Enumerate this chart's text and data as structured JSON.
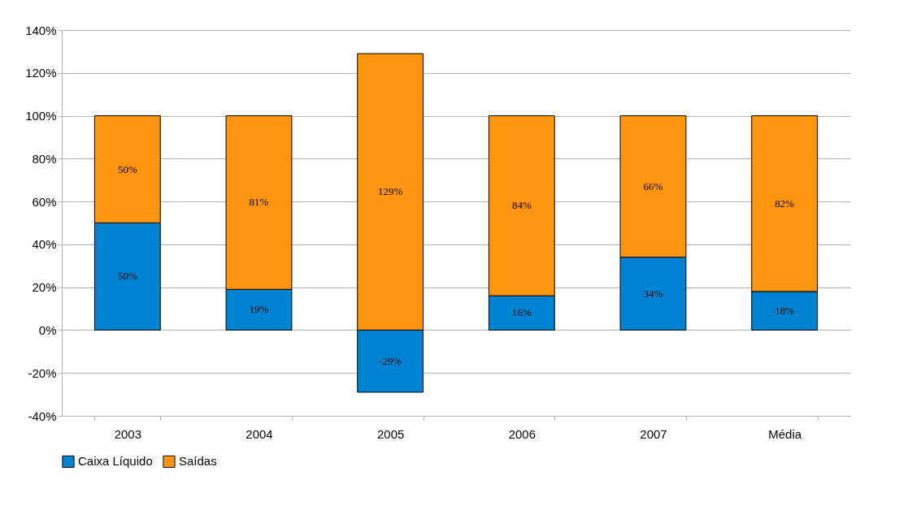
{
  "chart_data": {
    "type": "bar",
    "stacked": true,
    "categories": [
      "2003",
      "2004",
      "2005",
      "2006",
      "2007",
      "Média"
    ],
    "series": [
      {
        "name": "Caixa Líquido",
        "color": "#0084d1",
        "values": [
          50,
          19,
          -29,
          16,
          34,
          18
        ],
        "value_labels": [
          "50%",
          "19%",
          "-29%",
          "16%",
          "34%",
          "18%"
        ]
      },
      {
        "name": "Saídas",
        "color": "#ff950e",
        "values": [
          50,
          81,
          129,
          84,
          66,
          82
        ],
        "value_labels": [
          "50%",
          "81%",
          "129%",
          "84%",
          "66%",
          "82%"
        ]
      }
    ],
    "ylim": [
      -40,
      140
    ],
    "yticks": [
      {
        "value": -40,
        "label": "-40%"
      },
      {
        "value": -20,
        "label": "-20%"
      },
      {
        "value": 0,
        "label": "0%"
      },
      {
        "value": 20,
        "label": "20%"
      },
      {
        "value": 40,
        "label": "40%"
      },
      {
        "value": 60,
        "label": "60%"
      },
      {
        "value": 80,
        "label": "80%"
      },
      {
        "value": 100,
        "label": "100%"
      },
      {
        "value": 120,
        "label": "120%"
      },
      {
        "value": 140,
        "label": "140%"
      }
    ],
    "grid": "y",
    "legend": "bottom"
  }
}
